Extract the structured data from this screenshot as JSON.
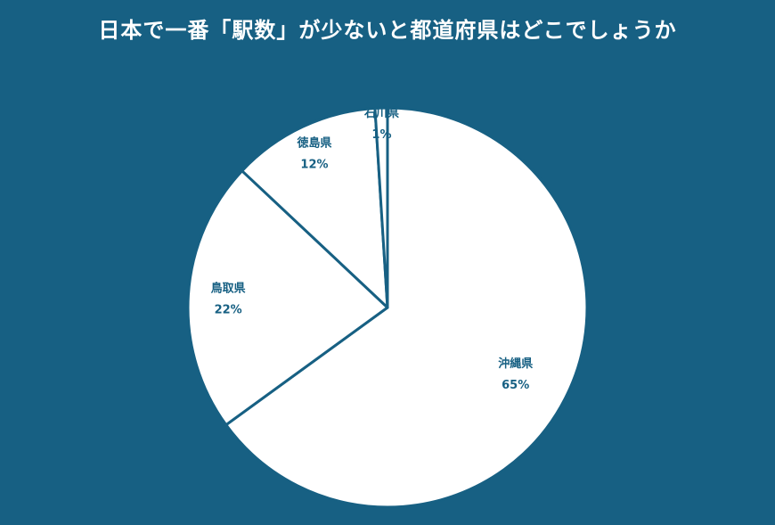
{
  "chart_data": {
    "type": "pie",
    "title": "日本で一番「駅数」が少ないと都道府県はどこでしょうか",
    "slices": [
      {
        "label": "沖縄県",
        "value": 65,
        "value_label": "65%"
      },
      {
        "label": "鳥取県",
        "value": 22,
        "value_label": "22%"
      },
      {
        "label": "徳島県",
        "value": 12,
        "value_label": "12%"
      },
      {
        "label": "石川県",
        "value": 1,
        "value_label": "1%"
      }
    ],
    "start": "12 o'clock",
    "direction": "clockwise",
    "legend": "none",
    "colors": {
      "background": "#176083",
      "slice_fill": "#ffffff",
      "slice_border": "#176083",
      "label_text": "#176083",
      "title_text": "#ffffff"
    }
  }
}
